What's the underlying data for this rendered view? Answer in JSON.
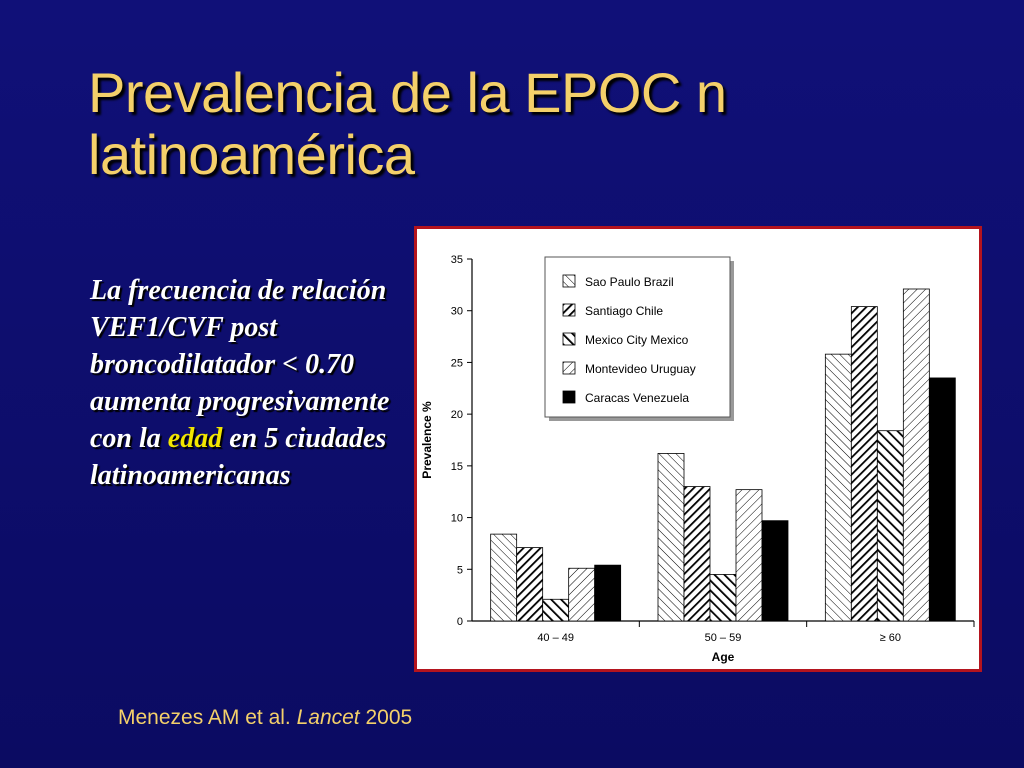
{
  "slide": {
    "title_line1": "Prevalencia de la EPOC n",
    "title_line2": "latinoamérica",
    "body_before": "La frecuencia de relación VEF1/CVF post broncodilatador < 0.70 aumenta progresivamente con la ",
    "body_highlight": "edad",
    "body_after": " en 5 ciudades latinoamericanas",
    "citation_authors": "Menezes AM et al.",
    "citation_journal": "Lancet",
    "citation_year": "2005",
    "colors": {
      "background": "#0e0e6e",
      "title": "#f4d06a",
      "highlight": "#f2e600",
      "frame": "#b4141e"
    }
  },
  "chart_data": {
    "type": "bar",
    "xlabel": "Age",
    "ylabel": "Prevalence %",
    "ylim": [
      0,
      35
    ],
    "yticks": [
      0,
      5,
      10,
      15,
      20,
      25,
      30,
      35
    ],
    "categories": [
      "40 – 49",
      "50 – 59",
      "≥ 60"
    ],
    "legend_position": "top-center",
    "series": [
      {
        "name": "Sao Paulo Brazil",
        "pattern": "light-diagonal-back",
        "values": [
          8.4,
          16.2,
          25.8
        ]
      },
      {
        "name": "Santiago Chile",
        "pattern": "dense-diagonal",
        "values": [
          7.1,
          13.0,
          30.4
        ]
      },
      {
        "name": "Mexico City Mexico",
        "pattern": "dense-diagonal-back",
        "values": [
          2.1,
          4.5,
          18.4
        ]
      },
      {
        "name": "Montevideo Uruguay",
        "pattern": "light-diagonal",
        "values": [
          5.1,
          12.7,
          32.1
        ]
      },
      {
        "name": "Caracas Venezuela",
        "pattern": "solid",
        "values": [
          5.4,
          9.7,
          23.5
        ]
      }
    ]
  }
}
